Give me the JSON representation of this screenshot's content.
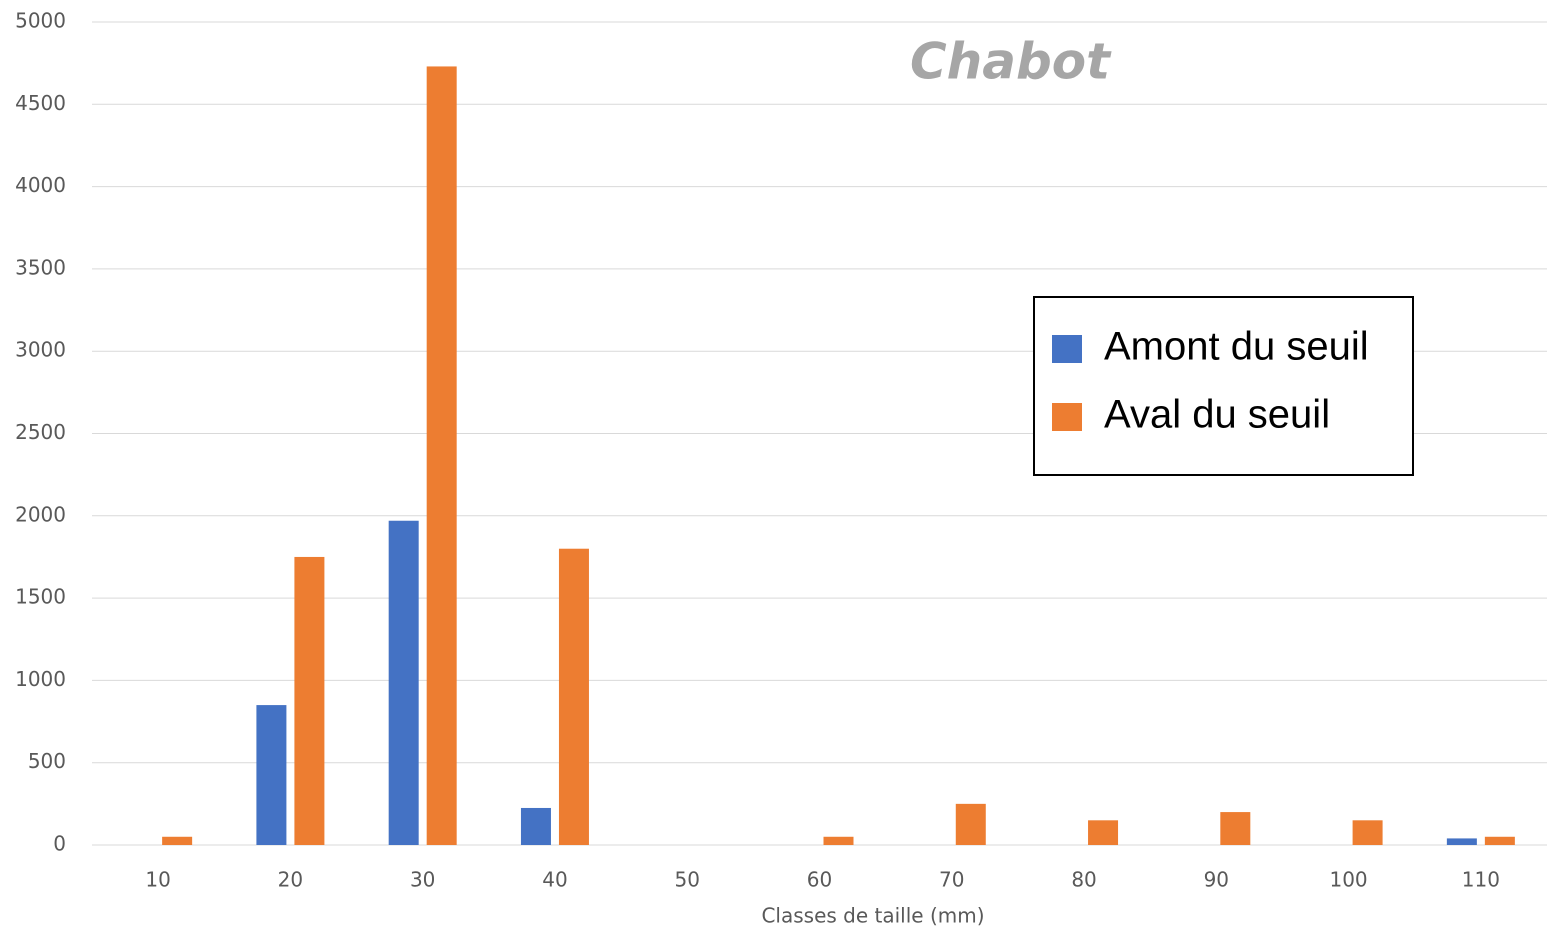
{
  "chart_data": {
    "type": "bar",
    "title": "Chabot",
    "x_label": "Classes de taille (mm)",
    "categories": [
      "10",
      "20",
      "30",
      "40",
      "50",
      "60",
      "70",
      "80",
      "90",
      "100",
      "110"
    ],
    "series": [
      {
        "name": "Amont du seuil",
        "color": "#4472c4",
        "values": [
          0,
          850,
          1970,
          225,
          0,
          0,
          0,
          0,
          0,
          0,
          40
        ]
      },
      {
        "name": "Aval du seuil",
        "color": "#ed7d31",
        "values": [
          50,
          1750,
          4730,
          1800,
          0,
          50,
          250,
          150,
          200,
          150,
          50
        ]
      }
    ],
    "ylim": [
      0,
      5000
    ],
    "yticks": [
      0,
      500,
      1000,
      1500,
      2000,
      2500,
      3000,
      3500,
      4000,
      4500,
      5000
    ],
    "grid": true,
    "legend": "right"
  }
}
